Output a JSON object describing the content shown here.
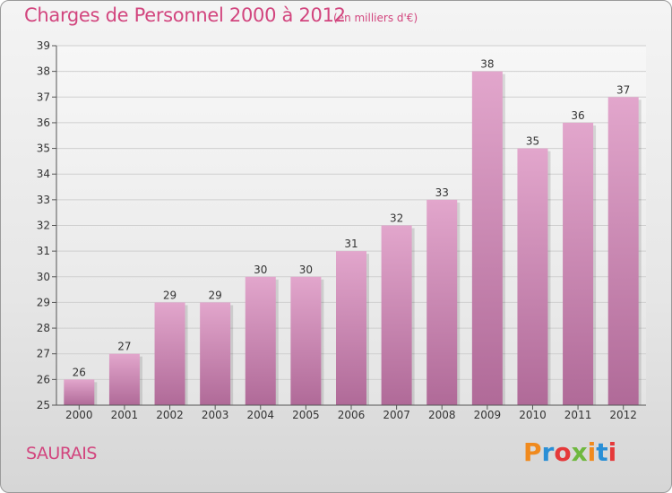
{
  "header": {
    "title": "Charges de Personnel 2000 à 2012",
    "subtitle": "(en milliers d'€)"
  },
  "footer": {
    "commune": "SAURAIS",
    "logo": [
      "P",
      "r",
      "o",
      "x",
      "i",
      "t",
      "i"
    ]
  },
  "colors": {
    "title": "#d2457e",
    "bar_top": "#e2a6cc",
    "bar_bottom": "#b06a98",
    "logo": [
      "#f08a1e",
      "#2a8fd6",
      "#e5393a",
      "#6fb83f",
      "#f08a1e",
      "#2a8fd6",
      "#e5393a"
    ]
  },
  "chart_data": {
    "type": "bar",
    "title": "Charges de Personnel 2000 à 2012",
    "subtitle": "(en milliers d'€)",
    "categories": [
      "2000",
      "2001",
      "2002",
      "2003",
      "2004",
      "2005",
      "2006",
      "2007",
      "2008",
      "2009",
      "2010",
      "2011",
      "2012"
    ],
    "values": [
      26,
      27,
      29,
      29,
      30,
      30,
      31,
      32,
      33,
      38,
      35,
      36,
      37
    ],
    "ylim": [
      25,
      39
    ],
    "yticks": [
      "25",
      "26",
      "27",
      "28",
      "29",
      "30",
      "31",
      "32",
      "33",
      "34",
      "35",
      "36",
      "37",
      "38",
      "39"
    ],
    "grid": true
  }
}
